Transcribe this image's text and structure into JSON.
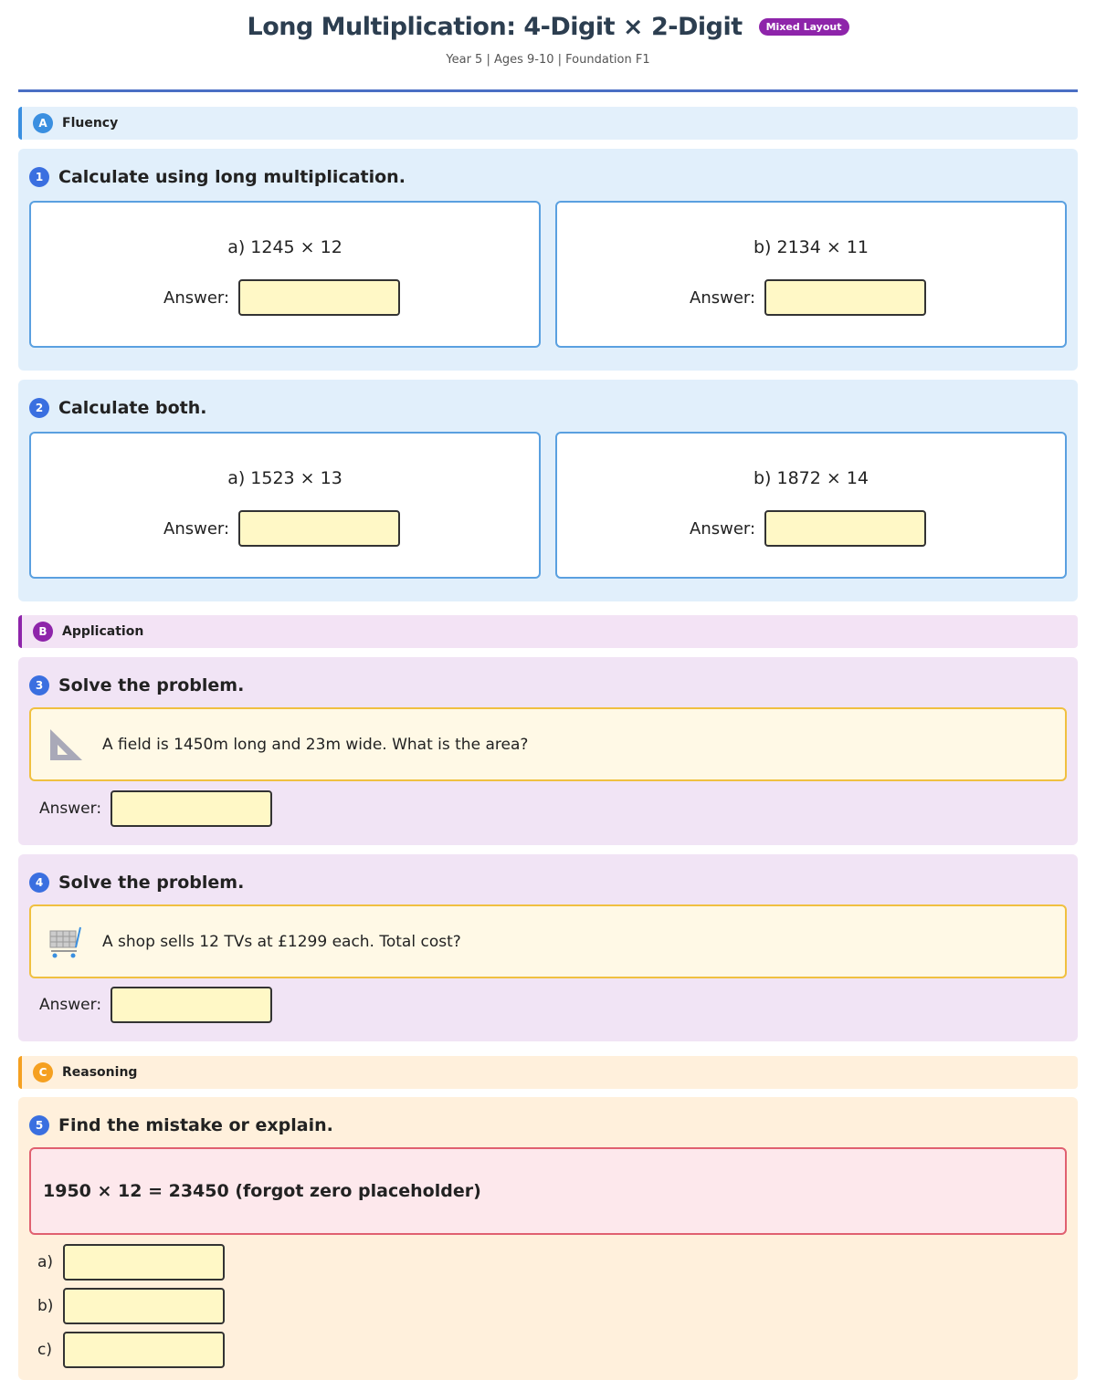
{
  "header": {
    "title": "Long Multiplication: 4-Digit × 2-Digit",
    "badge": "Mixed Layout",
    "subtitle": "Year 5 | Ages 9-10 | Foundation F1"
  },
  "colors": {
    "fluency": "#3a8fe0",
    "application": "#8e24aa",
    "reasoning": "#f5a020",
    "rule": "#4a6fc4"
  },
  "sections": [
    {
      "letter": "A",
      "label": "Fluency"
    },
    {
      "letter": "B",
      "label": "Application"
    },
    {
      "letter": "C",
      "label": "Reasoning"
    }
  ],
  "answer_label": "Answer:",
  "questions": [
    {
      "number": "1",
      "prompt": "Calculate using long multiplication.",
      "parts": [
        {
          "expr": "a) 1245 × 12"
        },
        {
          "expr": "b) 2134 × 11"
        }
      ]
    },
    {
      "number": "2",
      "prompt": "Calculate both.",
      "parts": [
        {
          "expr": "a) 1523 × 13"
        },
        {
          "expr": "b) 1872 × 14"
        }
      ]
    },
    {
      "number": "3",
      "prompt": "Solve the problem.",
      "icon": "set-square-icon",
      "story": "A field is 1450m long and 23m wide. What is the area?"
    },
    {
      "number": "4",
      "prompt": "Solve the problem.",
      "icon": "shopping-cart-icon",
      "story": "A shop sells 12 TVs at £1299 each. Total cost?"
    },
    {
      "number": "5",
      "prompt": "Find the mistake or explain.",
      "statement": "1950 × 12 = 23450 (forgot zero placeholder)",
      "parts": [
        "a)",
        "b)",
        "c)"
      ]
    }
  ]
}
